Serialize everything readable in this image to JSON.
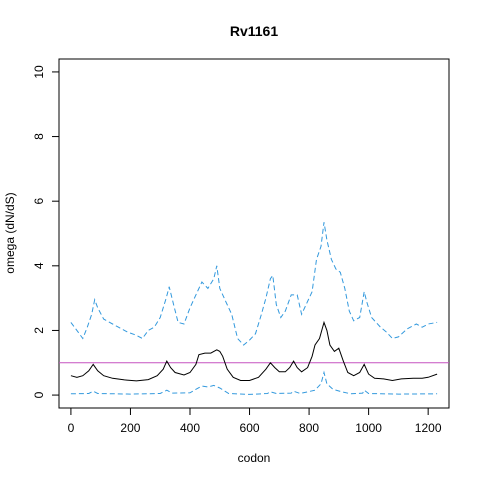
{
  "chart_data": {
    "type": "line",
    "title": "Rv1161",
    "xlabel": "codon",
    "ylabel": "omega (dN/dS)",
    "xlim": [
      -40,
      1270
    ],
    "ylim": [
      -0.4,
      10.4
    ],
    "x_ticks": [
      0,
      200,
      400,
      600,
      800,
      1000,
      1200
    ],
    "y_ticks": [
      0,
      2,
      4,
      6,
      8,
      10
    ],
    "grid": false,
    "legend": "none",
    "reference_line": {
      "y": 1,
      "color": "#c552c0"
    },
    "series": [
      {
        "role": "upper",
        "color": "#3399dd",
        "dash": "dashed",
        "points": [
          [
            0,
            2.25
          ],
          [
            20,
            2.0
          ],
          [
            40,
            1.75
          ],
          [
            55,
            2.1
          ],
          [
            70,
            2.5
          ],
          [
            80,
            2.95
          ],
          [
            90,
            2.7
          ],
          [
            110,
            2.35
          ],
          [
            140,
            2.2
          ],
          [
            160,
            2.1
          ],
          [
            190,
            1.95
          ],
          [
            220,
            1.85
          ],
          [
            240,
            1.75
          ],
          [
            260,
            2.0
          ],
          [
            280,
            2.1
          ],
          [
            300,
            2.4
          ],
          [
            320,
            3.0
          ],
          [
            330,
            3.35
          ],
          [
            345,
            2.8
          ],
          [
            360,
            2.25
          ],
          [
            380,
            2.2
          ],
          [
            400,
            2.7
          ],
          [
            420,
            3.1
          ],
          [
            440,
            3.5
          ],
          [
            460,
            3.3
          ],
          [
            480,
            3.6
          ],
          [
            490,
            4.0
          ],
          [
            500,
            3.3
          ],
          [
            520,
            2.9
          ],
          [
            540,
            2.5
          ],
          [
            560,
            1.75
          ],
          [
            580,
            1.55
          ],
          [
            600,
            1.7
          ],
          [
            620,
            1.9
          ],
          [
            640,
            2.5
          ],
          [
            655,
            3.0
          ],
          [
            670,
            3.6
          ],
          [
            678,
            3.7
          ],
          [
            690,
            2.8
          ],
          [
            705,
            2.4
          ],
          [
            720,
            2.6
          ],
          [
            740,
            3.1
          ],
          [
            760,
            3.1
          ],
          [
            775,
            2.5
          ],
          [
            790,
            2.8
          ],
          [
            810,
            3.2
          ],
          [
            825,
            4.2
          ],
          [
            840,
            4.6
          ],
          [
            850,
            5.35
          ],
          [
            860,
            4.8
          ],
          [
            875,
            4.2
          ],
          [
            890,
            3.9
          ],
          [
            905,
            3.8
          ],
          [
            920,
            3.3
          ],
          [
            935,
            2.6
          ],
          [
            950,
            2.3
          ],
          [
            970,
            2.4
          ],
          [
            985,
            3.2
          ],
          [
            995,
            2.85
          ],
          [
            1010,
            2.4
          ],
          [
            1040,
            2.1
          ],
          [
            1060,
            1.95
          ],
          [
            1080,
            1.75
          ],
          [
            1100,
            1.8
          ],
          [
            1130,
            2.05
          ],
          [
            1160,
            2.2
          ],
          [
            1180,
            2.1
          ],
          [
            1200,
            2.2
          ],
          [
            1230,
            2.25
          ]
        ]
      },
      {
        "role": "estimate",
        "color": "#000000",
        "dash": "solid",
        "points": [
          [
            0,
            0.6
          ],
          [
            20,
            0.55
          ],
          [
            40,
            0.6
          ],
          [
            60,
            0.75
          ],
          [
            75,
            0.95
          ],
          [
            90,
            0.75
          ],
          [
            110,
            0.6
          ],
          [
            140,
            0.52
          ],
          [
            180,
            0.47
          ],
          [
            220,
            0.44
          ],
          [
            260,
            0.48
          ],
          [
            290,
            0.6
          ],
          [
            310,
            0.8
          ],
          [
            322,
            1.05
          ],
          [
            335,
            0.85
          ],
          [
            350,
            0.7
          ],
          [
            380,
            0.62
          ],
          [
            400,
            0.7
          ],
          [
            420,
            0.95
          ],
          [
            430,
            1.25
          ],
          [
            450,
            1.3
          ],
          [
            470,
            1.3
          ],
          [
            490,
            1.4
          ],
          [
            500,
            1.35
          ],
          [
            510,
            1.2
          ],
          [
            525,
            0.8
          ],
          [
            545,
            0.55
          ],
          [
            570,
            0.45
          ],
          [
            600,
            0.45
          ],
          [
            630,
            0.55
          ],
          [
            655,
            0.8
          ],
          [
            670,
            1.0
          ],
          [
            685,
            0.85
          ],
          [
            700,
            0.72
          ],
          [
            720,
            0.72
          ],
          [
            735,
            0.85
          ],
          [
            748,
            1.05
          ],
          [
            760,
            0.85
          ],
          [
            775,
            0.72
          ],
          [
            795,
            0.85
          ],
          [
            810,
            1.2
          ],
          [
            820,
            1.55
          ],
          [
            835,
            1.75
          ],
          [
            850,
            2.25
          ],
          [
            860,
            2.0
          ],
          [
            870,
            1.55
          ],
          [
            885,
            1.35
          ],
          [
            900,
            1.45
          ],
          [
            915,
            1.05
          ],
          [
            930,
            0.7
          ],
          [
            950,
            0.6
          ],
          [
            970,
            0.7
          ],
          [
            985,
            0.95
          ],
          [
            1000,
            0.65
          ],
          [
            1020,
            0.52
          ],
          [
            1050,
            0.5
          ],
          [
            1080,
            0.45
          ],
          [
            1110,
            0.5
          ],
          [
            1150,
            0.52
          ],
          [
            1180,
            0.52
          ],
          [
            1200,
            0.55
          ],
          [
            1230,
            0.65
          ]
        ]
      },
      {
        "role": "lower",
        "color": "#3399dd",
        "dash": "dashed",
        "points": [
          [
            0,
            0.04
          ],
          [
            60,
            0.05
          ],
          [
            75,
            0.12
          ],
          [
            90,
            0.05
          ],
          [
            200,
            0.03
          ],
          [
            300,
            0.05
          ],
          [
            322,
            0.15
          ],
          [
            340,
            0.06
          ],
          [
            400,
            0.07
          ],
          [
            420,
            0.18
          ],
          [
            440,
            0.28
          ],
          [
            460,
            0.25
          ],
          [
            480,
            0.3
          ],
          [
            500,
            0.22
          ],
          [
            530,
            0.05
          ],
          [
            600,
            0.02
          ],
          [
            660,
            0.05
          ],
          [
            670,
            0.1
          ],
          [
            690,
            0.05
          ],
          [
            740,
            0.06
          ],
          [
            748,
            0.12
          ],
          [
            770,
            0.05
          ],
          [
            820,
            0.15
          ],
          [
            840,
            0.35
          ],
          [
            850,
            0.7
          ],
          [
            860,
            0.35
          ],
          [
            880,
            0.18
          ],
          [
            910,
            0.1
          ],
          [
            940,
            0.04
          ],
          [
            980,
            0.06
          ],
          [
            985,
            0.15
          ],
          [
            1000,
            0.05
          ],
          [
            1100,
            0.03
          ],
          [
            1230,
            0.04
          ]
        ]
      }
    ]
  }
}
